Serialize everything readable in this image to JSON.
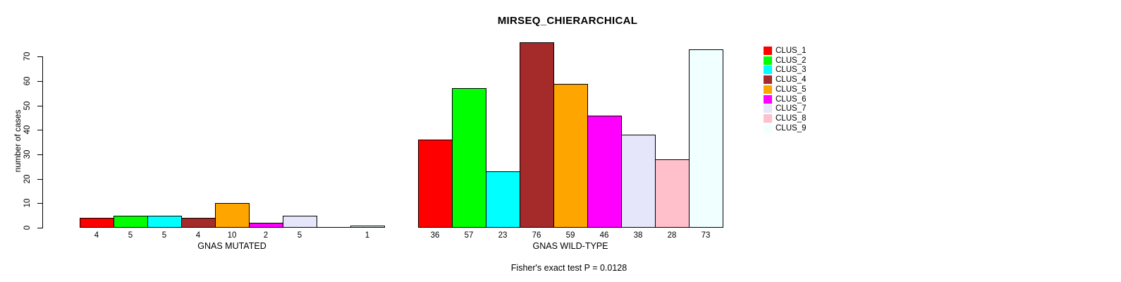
{
  "chart_data": {
    "type": "bar",
    "title": "MIRSEQ_CHIERARCHICAL",
    "ylabel": "number of cases",
    "yticks": [
      0,
      10,
      20,
      30,
      40,
      50,
      60,
      70
    ],
    "ylim": [
      0,
      70
    ],
    "grid": false,
    "legend_position": "top-right",
    "categories": [
      "GNAS MUTATED",
      "GNAS WILD-TYPE"
    ],
    "series": [
      {
        "name": "CLUS_1",
        "color": "#FF0000",
        "values": [
          4,
          36
        ],
        "labels": [
          "4",
          "36"
        ]
      },
      {
        "name": "CLUS_2",
        "color": "#00FF00",
        "values": [
          5,
          57
        ],
        "labels": [
          "5",
          "57"
        ]
      },
      {
        "name": "CLUS_3",
        "color": "#00FFFF",
        "values": [
          5,
          23
        ],
        "labels": [
          "5",
          "23"
        ]
      },
      {
        "name": "CLUS_4",
        "color": "#A52A2A",
        "values": [
          4,
          76
        ],
        "labels": [
          "4",
          "76"
        ]
      },
      {
        "name": "CLUS_5",
        "color": "#FFA500",
        "values": [
          10,
          59
        ],
        "labels": [
          "10",
          "59"
        ]
      },
      {
        "name": "CLUS_6",
        "color": "#FF00FF",
        "values": [
          2,
          46
        ],
        "labels": [
          "2",
          "46"
        ]
      },
      {
        "name": "CLUS_7",
        "color": "#E6E6FA",
        "values": [
          5,
          38
        ],
        "labels": [
          "5",
          "38"
        ]
      },
      {
        "name": "CLUS_8",
        "color": "#FFC0CB",
        "values": [
          0,
          28
        ],
        "labels": [
          "",
          "28"
        ]
      },
      {
        "name": "CLUS_9",
        "color": "#F0FFFF",
        "values": [
          1,
          73
        ],
        "labels": [
          "1",
          "73"
        ]
      }
    ],
    "annotation": "Fisher's exact test P = 0.0128"
  }
}
